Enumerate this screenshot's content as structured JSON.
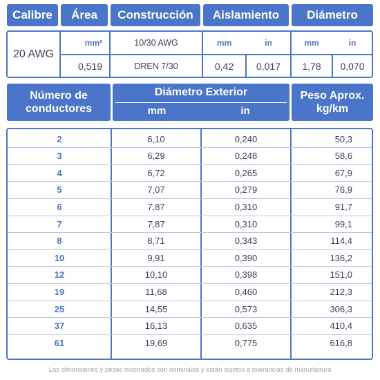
{
  "top_table": {
    "headers": {
      "calibre": "Calibre",
      "area": "Área",
      "construccion": "Construcción",
      "aislamiento": "Aislamiento",
      "diametro": "Diámetro"
    },
    "calibre_value": "20 AWG",
    "area": {
      "unit": "mm²",
      "value": "0,519"
    },
    "construccion": {
      "line1": "10/30 AWG",
      "line2": "DREN 7/30"
    },
    "aislamiento": {
      "unit_mm": "mm",
      "unit_in": "in",
      "value_mm": "0,42",
      "value_in": "0,017"
    },
    "diametro": {
      "unit_mm": "mm",
      "unit_in": "in",
      "value_mm": "1,78",
      "value_in": "0,070"
    }
  },
  "bottom_table": {
    "headers": {
      "numero_line1": "Número de",
      "numero_line2": "conductores",
      "diametro_exterior": "Diámetro Exterior",
      "unit_mm": "mm",
      "unit_in": "in",
      "peso_line1": "Peso Aprox.",
      "peso_line2": "kg/km"
    },
    "rows": [
      {
        "n": "2",
        "mm": "6,10",
        "in": "0,240",
        "peso": "50,3"
      },
      {
        "n": "3",
        "mm": "6,29",
        "in": "0,248",
        "peso": "58,6"
      },
      {
        "n": "4",
        "mm": "6,72",
        "in": "0,265",
        "peso": "67,9"
      },
      {
        "n": "5",
        "mm": "7,07",
        "in": "0,279",
        "peso": "76,9"
      },
      {
        "n": "6",
        "mm": "7,87",
        "in": "0,310",
        "peso": "91,7"
      },
      {
        "n": "7",
        "mm": "7,87",
        "in": "0,310",
        "peso": "99,1"
      },
      {
        "n": "8",
        "mm": "8,71",
        "in": "0,343",
        "peso": "114,4"
      },
      {
        "n": "10",
        "mm": "9,91",
        "in": "0,390",
        "peso": "136,2"
      },
      {
        "n": "12",
        "mm": "10,10",
        "in": "0,398",
        "peso": "151,0"
      },
      {
        "n": "19",
        "mm": "11,68",
        "in": "0,460",
        "peso": "212,3"
      },
      {
        "n": "25",
        "mm": "14,55",
        "in": "0,573",
        "peso": "306,3"
      },
      {
        "n": "37",
        "mm": "16,13",
        "in": "0,635",
        "peso": "410,4"
      },
      {
        "n": "61",
        "mm": "19,69",
        "in": "0,775",
        "peso": "616,8"
      }
    ]
  },
  "footnote": "Las dimensiones y pesos mostrados son nominales y están sujetos a tolerancias de manufactura"
}
